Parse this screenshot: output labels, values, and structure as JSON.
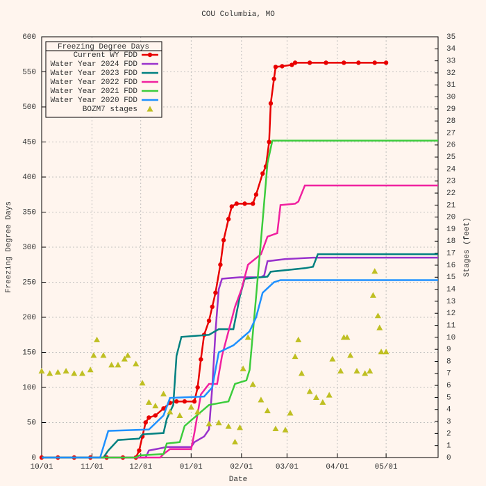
{
  "chart_data": {
    "type": "line",
    "title": "COU Columbia, MO",
    "x_label": "Date",
    "y_label": "Freezing Degree Days",
    "y2_label": "Stages (feet)",
    "legend_title": "Freezing Degree Days",
    "legend": "top-left",
    "grid": true,
    "xlim": [
      0,
      244
    ],
    "xticks": [
      {
        "value": 0,
        "label": "10/01"
      },
      {
        "value": 31,
        "label": "11/01"
      },
      {
        "value": 61,
        "label": "12/01"
      },
      {
        "value": 92,
        "label": "01/01"
      },
      {
        "value": 123,
        "label": "02/01"
      },
      {
        "value": 151,
        "label": "03/01"
      },
      {
        "value": 182,
        "label": "04/01"
      },
      {
        "value": 212,
        "label": "05/01"
      }
    ],
    "ylim": [
      0,
      600
    ],
    "yticks": [
      0,
      50,
      100,
      150,
      200,
      250,
      300,
      350,
      400,
      450,
      500,
      550,
      600
    ],
    "y2lim": [
      0,
      35
    ],
    "y2ticks": [
      0,
      1,
      2,
      3,
      4,
      5,
      6,
      7,
      8,
      9,
      10,
      11,
      12,
      13,
      14,
      15,
      16,
      17,
      18,
      19,
      20,
      21,
      22,
      23,
      24,
      25,
      26,
      27,
      28,
      29,
      30,
      31,
      32,
      33,
      34,
      35
    ],
    "series": [
      {
        "name": "Current WY FDD",
        "color": "#e80000",
        "style": "linespoints",
        "x": [
          0,
          10,
          20,
          30,
          40,
          50,
          58,
          60,
          62,
          64,
          66,
          70,
          75,
          79,
          83,
          88,
          94,
          96,
          98,
          100,
          103,
          105,
          107,
          110,
          112,
          115,
          117,
          120,
          125,
          130,
          132,
          136,
          138,
          140,
          141,
          143,
          144,
          148,
          154,
          156,
          165,
          175,
          186,
          195,
          205,
          212
        ],
        "values": [
          0,
          0,
          0,
          0,
          0,
          0,
          0,
          10,
          30,
          50,
          57,
          60,
          70,
          78,
          80,
          80,
          80,
          100,
          140,
          175,
          195,
          215,
          235,
          275,
          310,
          340,
          358,
          362,
          362,
          362,
          375,
          405,
          415,
          450,
          505,
          540,
          557,
          558,
          560,
          563,
          563,
          563,
          563,
          563,
          563,
          563
        ]
      },
      {
        "name": "Water Year 2024 FDD",
        "color": "#9932cc",
        "style": "lines",
        "x": [
          0,
          64,
          66,
          77,
          92,
          94,
          100,
          103,
          105,
          107,
          109,
          111,
          122,
          135,
          137,
          139,
          150,
          167,
          244
        ],
        "values": [
          0,
          0,
          10,
          15,
          15,
          22,
          30,
          40,
          100,
          180,
          240,
          255,
          257,
          257,
          260,
          280,
          283,
          285,
          285
        ]
      },
      {
        "name": "Water Year 2023 FDD",
        "color": "#008080",
        "style": "lines",
        "x": [
          0,
          38,
          41,
          47,
          60,
          62,
          75,
          77,
          81,
          83,
          86,
          103,
          109,
          118,
          122,
          125,
          139,
          141,
          162,
          167,
          170,
          244
        ],
        "values": [
          0,
          0,
          10,
          25,
          27,
          33,
          35,
          55,
          75,
          145,
          172,
          175,
          183,
          183,
          230,
          255,
          258,
          265,
          270,
          272,
          290,
          290
        ]
      },
      {
        "name": "Water Year 2022 FDD",
        "color": "#f0209f",
        "style": "lines",
        "x": [
          0,
          73,
          75,
          79,
          92,
          94,
          98,
          103,
          108,
          111,
          115,
          119,
          123,
          127,
          135,
          139,
          145,
          147,
          156,
          158,
          162,
          244
        ],
        "values": [
          0,
          0,
          5,
          12,
          12,
          35,
          90,
          105,
          105,
          145,
          180,
          215,
          240,
          275,
          290,
          315,
          320,
          360,
          362,
          365,
          388,
          388
        ]
      },
      {
        "name": "Water Year 2021 FDD",
        "color": "#3ccc3c",
        "style": "lines",
        "x": [
          0,
          58,
          60,
          75,
          77,
          85,
          88,
          98,
          103,
          115,
          119,
          126,
          128,
          132,
          135,
          139,
          142,
          244
        ],
        "values": [
          0,
          0,
          3,
          5,
          20,
          22,
          45,
          65,
          75,
          80,
          105,
          110,
          125,
          230,
          310,
          420,
          452,
          452
        ]
      },
      {
        "name": "Water Year 2020 FDD",
        "color": "#1e90ff",
        "style": "lines",
        "x": [
          0,
          36,
          41,
          66,
          75,
          79,
          100,
          105,
          109,
          118,
          128,
          132,
          136,
          143,
          147,
          244
        ],
        "values": [
          0,
          0,
          38,
          40,
          60,
          85,
          87,
          100,
          150,
          160,
          180,
          200,
          235,
          250,
          253,
          253
        ]
      },
      {
        "name": "BOZM7 stages",
        "color": "#bfbf22",
        "style": "points",
        "axis": "y2",
        "x": [
          0,
          5,
          10,
          15,
          20,
          25,
          30,
          32,
          34,
          38,
          43,
          47,
          51,
          53,
          58,
          62,
          66,
          70,
          75,
          79,
          85,
          92,
          96,
          103,
          109,
          115,
          119,
          122,
          124,
          127,
          130,
          135,
          139,
          144,
          150,
          153,
          156,
          158,
          160,
          165,
          169,
          173,
          177,
          179,
          184,
          186,
          188,
          190,
          194,
          199,
          202,
          204,
          205,
          207,
          208,
          209,
          212
        ],
        "values": [
          7.2,
          7.0,
          7.1,
          7.2,
          7.0,
          7.0,
          7.3,
          8.5,
          9.8,
          8.5,
          7.7,
          7.7,
          8.2,
          8.5,
          7.8,
          6.2,
          4.6,
          4.3,
          5.3,
          3.8,
          3.5,
          4.2,
          3.8,
          2.8,
          2.9,
          2.6,
          1.3,
          2.5,
          7.4,
          10.0,
          6.1,
          4.8,
          3.9,
          2.4,
          2.3,
          3.7,
          8.4,
          9.8,
          7.0,
          5.5,
          5.0,
          4.6,
          5.2,
          8.2,
          7.2,
          10.0,
          10.0,
          8.5,
          7.2,
          7.0,
          7.2,
          13.5,
          15.5,
          11.8,
          10.8,
          8.8,
          8.8
        ]
      }
    ]
  }
}
